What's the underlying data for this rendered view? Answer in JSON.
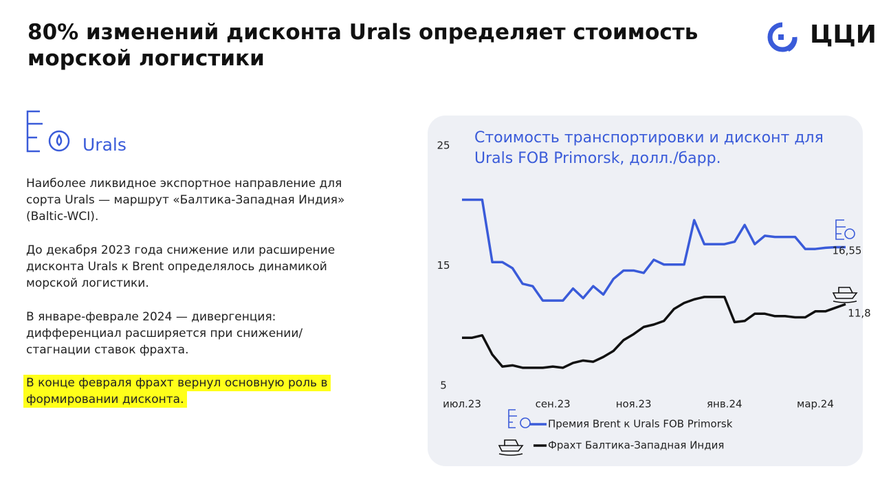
{
  "header": {
    "title": "80% изменений дисконта Urals определяет стоимость морской логистики",
    "logo": "ЦЦИ"
  },
  "section": {
    "title": "Urals",
    "paragraphs": [
      "Наиболее ликвидное экспортное направление для сорта Urals — маршрут «Балтика-Западная Индия» (Baltic-WCI).",
      "До декабря 2023 года снижение или расширение дисконта Urals к Brent определялось динамикой морской логистики.",
      "В январе-феврале 2024 — дивергенция: дифференциал расширяется при снижении/стагнации ставок фрахта.",
      "В конце февраля фрахт вернул основную роль в формировании дисконта."
    ],
    "highlight": 3
  },
  "chart_data": {
    "type": "line",
    "title": "Стоимость транспортировки и дисконт для Urals FOB Primorsk, долл./барр.",
    "categories": [
      "июл.23",
      null,
      null,
      null,
      null,
      null,
      null,
      null,
      null,
      "сен.23",
      null,
      null,
      null,
      null,
      null,
      null,
      null,
      "ноя.23",
      null,
      null,
      null,
      null,
      null,
      null,
      null,
      null,
      "янв.24",
      null,
      null,
      null,
      null,
      null,
      null,
      null,
      null,
      "мар.24",
      null,
      null,
      null
    ],
    "series": [
      {
        "name": "Премия Brent к Urals FOB Primorsk",
        "color": "#3a5bd9",
        "values": [
          20.5,
          20.5,
          20.5,
          15.3,
          15.3,
          14.8,
          13.5,
          13.3,
          12.1,
          12.1,
          12.1,
          13.1,
          12.3,
          13.3,
          12.6,
          13.9,
          14.6,
          14.6,
          14.4,
          15.5,
          15.1,
          15.1,
          15.1,
          18.8,
          16.8,
          16.8,
          16.8,
          17.0,
          18.4,
          16.8,
          17.5,
          17.4,
          17.4,
          17.4,
          16.4,
          16.4,
          16.5,
          16.55,
          16.55
        ],
        "value_labels": [
          null,
          null,
          null,
          null,
          null,
          null,
          null,
          null,
          null,
          null,
          null,
          null,
          null,
          null,
          null,
          null,
          null,
          null,
          null,
          null,
          null,
          null,
          null,
          null,
          null,
          null,
          null,
          null,
          null,
          null,
          null,
          null,
          null,
          null,
          null,
          null,
          null,
          null,
          "16,55"
        ]
      },
      {
        "name": "Фрахт Балтика-Западная Индия",
        "color": "#111111",
        "values": [
          9.0,
          9.0,
          9.2,
          7.6,
          6.6,
          6.7,
          6.5,
          6.5,
          6.5,
          6.6,
          6.5,
          6.9,
          7.1,
          7.0,
          7.4,
          7.9,
          8.8,
          9.3,
          9.9,
          10.1,
          10.4,
          11.4,
          11.9,
          12.2,
          12.4,
          12.4,
          12.4,
          10.3,
          10.4,
          11.0,
          11.0,
          10.8,
          10.8,
          10.7,
          10.7,
          11.2,
          11.2,
          11.5,
          11.8
        ],
        "value_labels": [
          null,
          null,
          null,
          null,
          null,
          null,
          null,
          null,
          null,
          null,
          null,
          null,
          null,
          null,
          null,
          null,
          null,
          null,
          null,
          null,
          null,
          null,
          null,
          null,
          null,
          null,
          null,
          null,
          null,
          null,
          null,
          null,
          null,
          null,
          null,
          null,
          null,
          null,
          "11,8"
        ]
      }
    ],
    "ylim": [
      5,
      25
    ],
    "yticks": [
      5,
      15,
      25
    ],
    "grid": false
  }
}
